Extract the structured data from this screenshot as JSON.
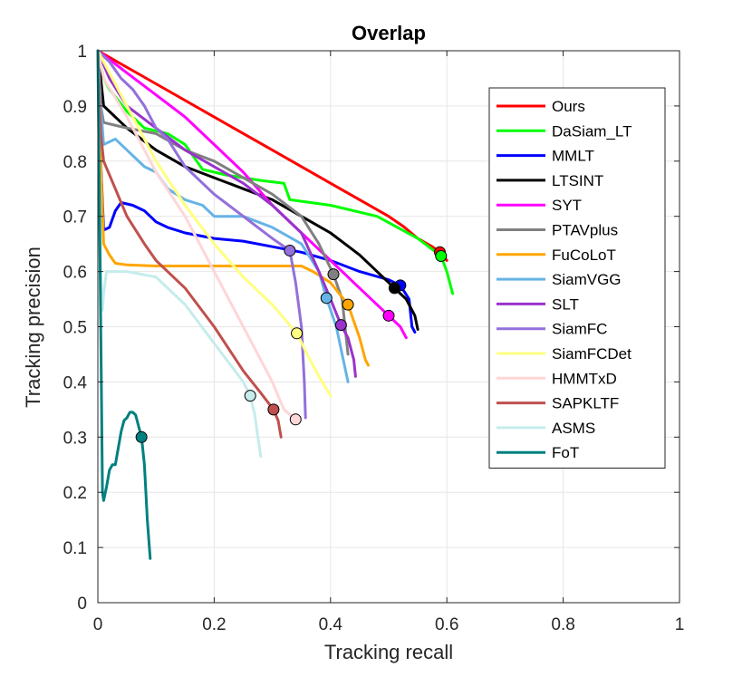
{
  "chart_data": {
    "type": "line",
    "title": "Overlap",
    "xlabel": "Tracking recall",
    "ylabel": "Tracking precision",
    "xlim": [
      0,
      1
    ],
    "ylim": [
      0,
      1
    ],
    "xticks": [
      0,
      0.2,
      0.4,
      0.6,
      0.8,
      1
    ],
    "yticks": [
      0,
      0.1,
      0.2,
      0.3,
      0.4,
      0.5,
      0.6,
      0.7,
      0.8,
      0.9,
      1
    ],
    "xtick_labels": [
      "0",
      "0.2",
      "0.4",
      "0.6",
      "0.8",
      "1"
    ],
    "ytick_labels": [
      "0",
      "0.1",
      "0.2",
      "0.3",
      "0.4",
      "0.5",
      "0.6",
      "0.7",
      "0.8",
      "0.9",
      "1"
    ],
    "grid": true,
    "legend_position": "top-right",
    "series": [
      {
        "name": "Ours",
        "color": "#ff0000",
        "marker": [
          0.588,
          0.635
        ],
        "points": [
          [
            0,
            1
          ],
          [
            0.1,
            0.94
          ],
          [
            0.2,
            0.88
          ],
          [
            0.3,
            0.82
          ],
          [
            0.4,
            0.76
          ],
          [
            0.5,
            0.7
          ],
          [
            0.525,
            0.682
          ],
          [
            0.55,
            0.66
          ],
          [
            0.575,
            0.645
          ],
          [
            0.588,
            0.635
          ],
          [
            0.6,
            0.62
          ]
        ]
      },
      {
        "name": "DaSiam_LT",
        "color": "#00ff00",
        "marker": [
          0.59,
          0.628
        ],
        "points": [
          [
            0,
            1
          ],
          [
            0.01,
            0.95
          ],
          [
            0.02,
            0.93
          ],
          [
            0.05,
            0.89
          ],
          [
            0.08,
            0.86
          ],
          [
            0.12,
            0.85
          ],
          [
            0.15,
            0.83
          ],
          [
            0.17,
            0.8
          ],
          [
            0.18,
            0.785
          ],
          [
            0.2,
            0.78
          ],
          [
            0.22,
            0.775
          ],
          [
            0.25,
            0.77
          ],
          [
            0.28,
            0.765
          ],
          [
            0.32,
            0.76
          ],
          [
            0.33,
            0.73
          ],
          [
            0.4,
            0.72
          ],
          [
            0.48,
            0.7
          ],
          [
            0.55,
            0.66
          ],
          [
            0.59,
            0.628
          ],
          [
            0.6,
            0.6
          ],
          [
            0.61,
            0.56
          ]
        ]
      },
      {
        "name": "MMLT",
        "color": "#0000ff",
        "marker": [
          0.52,
          0.575
        ],
        "points": [
          [
            0,
            1
          ],
          [
            0.005,
            0.8
          ],
          [
            0.01,
            0.675
          ],
          [
            0.02,
            0.68
          ],
          [
            0.03,
            0.71
          ],
          [
            0.04,
            0.725
          ],
          [
            0.06,
            0.72
          ],
          [
            0.08,
            0.71
          ],
          [
            0.1,
            0.69
          ],
          [
            0.12,
            0.68
          ],
          [
            0.15,
            0.67
          ],
          [
            0.2,
            0.66
          ],
          [
            0.25,
            0.655
          ],
          [
            0.3,
            0.645
          ],
          [
            0.35,
            0.635
          ],
          [
            0.4,
            0.62
          ],
          [
            0.45,
            0.6
          ],
          [
            0.5,
            0.585
          ],
          [
            0.52,
            0.575
          ],
          [
            0.535,
            0.55
          ],
          [
            0.54,
            0.5
          ],
          [
            0.545,
            0.49
          ]
        ]
      },
      {
        "name": "LTSINT",
        "color": "#000000",
        "marker": [
          0.51,
          0.57
        ],
        "points": [
          [
            0,
            1
          ],
          [
            0.01,
            0.9
          ],
          [
            0.05,
            0.86
          ],
          [
            0.1,
            0.82
          ],
          [
            0.15,
            0.79
          ],
          [
            0.2,
            0.77
          ],
          [
            0.25,
            0.75
          ],
          [
            0.3,
            0.73
          ],
          [
            0.35,
            0.7
          ],
          [
            0.4,
            0.67
          ],
          [
            0.45,
            0.63
          ],
          [
            0.5,
            0.58
          ],
          [
            0.51,
            0.57
          ],
          [
            0.53,
            0.55
          ],
          [
            0.545,
            0.52
          ],
          [
            0.55,
            0.495
          ]
        ]
      },
      {
        "name": "SYT",
        "color": "#ff00ff",
        "marker": [
          0.5,
          0.52
        ],
        "points": [
          [
            0,
            1
          ],
          [
            0.05,
            0.96
          ],
          [
            0.1,
            0.92
          ],
          [
            0.15,
            0.88
          ],
          [
            0.2,
            0.83
          ],
          [
            0.25,
            0.78
          ],
          [
            0.3,
            0.72
          ],
          [
            0.35,
            0.67
          ],
          [
            0.4,
            0.62
          ],
          [
            0.45,
            0.57
          ],
          [
            0.5,
            0.52
          ],
          [
            0.52,
            0.5
          ],
          [
            0.53,
            0.48
          ]
        ]
      },
      {
        "name": "PTAVplus",
        "color": "#808080",
        "marker": [
          0.405,
          0.595
        ],
        "points": [
          [
            0,
            1
          ],
          [
            0.005,
            0.9
          ],
          [
            0.01,
            0.87
          ],
          [
            0.05,
            0.86
          ],
          [
            0.1,
            0.85
          ],
          [
            0.15,
            0.82
          ],
          [
            0.2,
            0.8
          ],
          [
            0.25,
            0.77
          ],
          [
            0.3,
            0.74
          ],
          [
            0.35,
            0.7
          ],
          [
            0.38,
            0.65
          ],
          [
            0.405,
            0.595
          ],
          [
            0.42,
            0.55
          ],
          [
            0.425,
            0.5
          ],
          [
            0.43,
            0.45
          ]
        ]
      },
      {
        "name": "FuCoLoT",
        "color": "#ffa500",
        "marker": [
          0.43,
          0.54
        ],
        "points": [
          [
            0,
            1
          ],
          [
            0.005,
            0.8
          ],
          [
            0.01,
            0.65
          ],
          [
            0.02,
            0.63
          ],
          [
            0.03,
            0.615
          ],
          [
            0.05,
            0.612
          ],
          [
            0.1,
            0.61
          ],
          [
            0.2,
            0.61
          ],
          [
            0.3,
            0.61
          ],
          [
            0.35,
            0.61
          ],
          [
            0.37,
            0.6
          ],
          [
            0.4,
            0.58
          ],
          [
            0.43,
            0.54
          ],
          [
            0.45,
            0.48
          ],
          [
            0.46,
            0.44
          ],
          [
            0.465,
            0.43
          ]
        ]
      },
      {
        "name": "SiamVGG",
        "color": "#66b3e6",
        "marker": [
          0.393,
          0.552
        ],
        "points": [
          [
            0,
            1
          ],
          [
            0.005,
            0.9
          ],
          [
            0.01,
            0.83
          ],
          [
            0.02,
            0.835
          ],
          [
            0.03,
            0.84
          ],
          [
            0.05,
            0.82
          ],
          [
            0.08,
            0.79
          ],
          [
            0.1,
            0.78
          ],
          [
            0.12,
            0.75
          ],
          [
            0.15,
            0.73
          ],
          [
            0.18,
            0.72
          ],
          [
            0.2,
            0.7
          ],
          [
            0.25,
            0.7
          ],
          [
            0.3,
            0.68
          ],
          [
            0.35,
            0.65
          ],
          [
            0.38,
            0.6
          ],
          [
            0.393,
            0.552
          ],
          [
            0.41,
            0.5
          ],
          [
            0.42,
            0.45
          ],
          [
            0.43,
            0.4
          ]
        ]
      },
      {
        "name": "SLT",
        "color": "#9933cc",
        "marker": [
          0.418,
          0.503
        ],
        "points": [
          [
            0,
            1
          ],
          [
            0.02,
            0.95
          ],
          [
            0.05,
            0.9
          ],
          [
            0.1,
            0.86
          ],
          [
            0.15,
            0.82
          ],
          [
            0.2,
            0.79
          ],
          [
            0.25,
            0.76
          ],
          [
            0.3,
            0.72
          ],
          [
            0.35,
            0.67
          ],
          [
            0.38,
            0.6
          ],
          [
            0.4,
            0.55
          ],
          [
            0.418,
            0.503
          ],
          [
            0.43,
            0.48
          ],
          [
            0.44,
            0.44
          ],
          [
            0.443,
            0.41
          ]
        ]
      },
      {
        "name": "SiamFC",
        "color": "#9370db",
        "marker": [
          0.33,
          0.638
        ],
        "points": [
          [
            0,
            1
          ],
          [
            0.02,
            0.98
          ],
          [
            0.04,
            0.95
          ],
          [
            0.06,
            0.93
          ],
          [
            0.08,
            0.9
          ],
          [
            0.1,
            0.86
          ],
          [
            0.12,
            0.84
          ],
          [
            0.15,
            0.79
          ],
          [
            0.2,
            0.74
          ],
          [
            0.25,
            0.7
          ],
          [
            0.3,
            0.66
          ],
          [
            0.33,
            0.638
          ],
          [
            0.34,
            0.58
          ],
          [
            0.35,
            0.5
          ],
          [
            0.355,
            0.4
          ],
          [
            0.357,
            0.335
          ]
        ]
      },
      {
        "name": "SiamFCDet",
        "color": "#ffff80",
        "marker": [
          0.342,
          0.488
        ],
        "points": [
          [
            0,
            1
          ],
          [
            0.02,
            0.96
          ],
          [
            0.05,
            0.9
          ],
          [
            0.08,
            0.84
          ],
          [
            0.1,
            0.8
          ],
          [
            0.15,
            0.72
          ],
          [
            0.2,
            0.65
          ],
          [
            0.25,
            0.59
          ],
          [
            0.3,
            0.54
          ],
          [
            0.342,
            0.488
          ],
          [
            0.36,
            0.45
          ],
          [
            0.38,
            0.41
          ],
          [
            0.4,
            0.375
          ]
        ]
      },
      {
        "name": "HMMTxD",
        "color": "#ffd6d6",
        "marker": [
          0.34,
          0.332
        ],
        "points": [
          [
            0,
            1
          ],
          [
            0.01,
            0.95
          ],
          [
            0.05,
            0.88
          ],
          [
            0.08,
            0.82
          ],
          [
            0.1,
            0.78
          ],
          [
            0.15,
            0.7
          ],
          [
            0.2,
            0.6
          ],
          [
            0.25,
            0.5
          ],
          [
            0.3,
            0.4
          ],
          [
            0.32,
            0.35
          ],
          [
            0.34,
            0.332
          ]
        ]
      },
      {
        "name": "SAPKLTF",
        "color": "#c0504d",
        "marker": [
          0.302,
          0.35
        ],
        "points": [
          [
            0,
            1
          ],
          [
            0.005,
            0.85
          ],
          [
            0.01,
            0.8
          ],
          [
            0.03,
            0.75
          ],
          [
            0.05,
            0.7
          ],
          [
            0.08,
            0.65
          ],
          [
            0.1,
            0.62
          ],
          [
            0.15,
            0.57
          ],
          [
            0.2,
            0.5
          ],
          [
            0.25,
            0.42
          ],
          [
            0.28,
            0.38
          ],
          [
            0.302,
            0.35
          ],
          [
            0.31,
            0.33
          ],
          [
            0.315,
            0.3
          ]
        ]
      },
      {
        "name": "ASMS",
        "color": "#c6ecec",
        "marker": [
          0.262,
          0.375
        ],
        "points": [
          [
            0,
            1
          ],
          [
            0.005,
            0.6
          ],
          [
            0.008,
            0.53
          ],
          [
            0.01,
            0.56
          ],
          [
            0.015,
            0.6
          ],
          [
            0.02,
            0.6
          ],
          [
            0.05,
            0.6
          ],
          [
            0.1,
            0.59
          ],
          [
            0.15,
            0.54
          ],
          [
            0.2,
            0.47
          ],
          [
            0.25,
            0.4
          ],
          [
            0.262,
            0.375
          ],
          [
            0.27,
            0.34
          ],
          [
            0.275,
            0.3
          ],
          [
            0.28,
            0.265
          ]
        ]
      },
      {
        "name": "FoT",
        "color": "#008080",
        "marker": [
          0.075,
          0.3
        ],
        "points": [
          [
            0,
            1
          ],
          [
            0.005,
            0.5
          ],
          [
            0.008,
            0.2
          ],
          [
            0.01,
            0.185
          ],
          [
            0.015,
            0.21
          ],
          [
            0.02,
            0.24
          ],
          [
            0.025,
            0.25
          ],
          [
            0.03,
            0.25
          ],
          [
            0.035,
            0.28
          ],
          [
            0.04,
            0.31
          ],
          [
            0.045,
            0.33
          ],
          [
            0.05,
            0.335
          ],
          [
            0.055,
            0.345
          ],
          [
            0.06,
            0.345
          ],
          [
            0.065,
            0.34
          ],
          [
            0.07,
            0.32
          ],
          [
            0.075,
            0.3
          ],
          [
            0.08,
            0.25
          ],
          [
            0.085,
            0.15
          ],
          [
            0.09,
            0.08
          ]
        ]
      }
    ]
  }
}
